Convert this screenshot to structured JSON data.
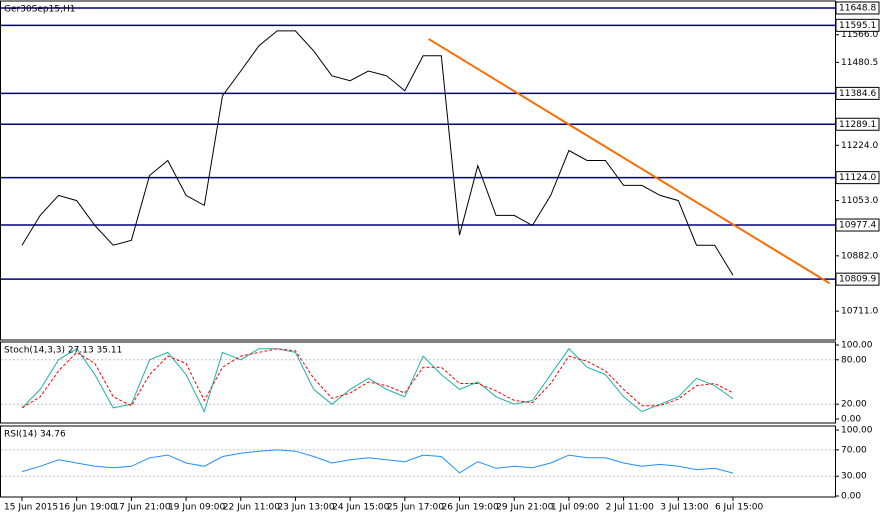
{
  "chart_data": [
    {
      "type": "line",
      "title": "Ger30Sep15,H1",
      "categories": [
        "15 Jun 2015",
        null,
        null,
        "16 Jun 19:00",
        null,
        null,
        "17 Jun 21:00",
        null,
        null,
        "19 Jun 09:00",
        null,
        null,
        "22 Jun 11:00",
        null,
        null,
        "23 Jun 13:00",
        null,
        null,
        "24 Jun 15:00",
        null,
        null,
        "25 Jun 17:00",
        null,
        null,
        "26 Jun 19:00",
        null,
        null,
        "29 Jun 21:00",
        null,
        null,
        "1 Jul 09:00",
        null,
        null,
        "2 Jul 11:00",
        null,
        null,
        "3 Jul 13:00",
        null,
        null,
        "6 Jul 15:00"
      ],
      "values": [
        10915,
        11007,
        11069,
        11053,
        10976,
        10915,
        10930,
        11131,
        11177,
        11069,
        11038,
        11377,
        11454,
        11532,
        11578,
        11578,
        11516,
        11439,
        11424,
        11454,
        11439,
        11393,
        11501,
        11501,
        10946,
        11161,
        11007,
        11007,
        10976,
        11069,
        11208,
        11177,
        11177,
        11100,
        11100,
        11069,
        11053,
        10915,
        10915,
        10822
      ],
      "color": "#000000",
      "ylim": [
        10621.7,
        11670.4
      ],
      "yticks": [
        {
          "value": 11566,
          "label": "11566.0"
        },
        11480.5,
        {
          "value": 11224,
          "label": "11224.0"
        },
        {
          "value": 11053,
          "label": "11053.0"
        },
        {
          "value": 10882,
          "label": "10882.0"
        },
        {
          "value": 10711,
          "label": "10711.0"
        }
      ],
      "levels": [
        11648.8,
        11595.1,
        11384.6,
        11289.1,
        {
          "value": 11124,
          "label": "11124.0"
        },
        10977.4,
        10809.9
      ],
      "level_color": "#000080",
      "trendline": {
        "start": [
          22.3,
          11553
        ],
        "end": [
          44.3,
          10797
        ],
        "color": "#ff6a00"
      }
    },
    {
      "type": "line",
      "title": "Stoch(14,3,3) 27.13 35.11",
      "series": [
        {
          "color": "#20b2aa",
          "values": [
            15,
            40,
            80,
            95,
            60,
            15,
            20,
            80,
            90,
            60,
            10,
            90,
            80,
            95,
            95,
            90,
            40,
            20,
            40,
            55,
            40,
            30,
            85,
            60,
            40,
            50,
            30,
            20,
            25,
            60,
            95,
            70,
            60,
            30,
            10,
            20,
            30,
            55,
            45,
            27.13
          ]
        },
        {
          "color": "#ff0000",
          "dashed": true,
          "values": [
            15,
            30,
            65,
            90,
            75,
            30,
            18,
            60,
            85,
            75,
            25,
            70,
            85,
            90,
            95,
            92,
            55,
            28,
            35,
            50,
            45,
            35,
            70,
            70,
            48,
            48,
            38,
            25,
            22,
            48,
            85,
            78,
            65,
            40,
            18,
            18,
            27,
            45,
            48,
            35.11
          ]
        }
      ],
      "ylim": [
        -5.4,
        104.05
      ],
      "yticks": [
        {
          "value": 100,
          "label": "100.00"
        },
        {
          "value": 80,
          "label": "80.00"
        },
        {
          "value": 20,
          "label": "20.00"
        },
        {
          "value": 0,
          "label": "0.00"
        }
      ],
      "dashed_grid": [
        80,
        20
      ]
    },
    {
      "type": "line",
      "title": "RSI(14) 34.76",
      "series": [
        {
          "color": "#1e90ff",
          "values": [
            37,
            45,
            55,
            50,
            45,
            43,
            45,
            58,
            62,
            50,
            45,
            60,
            65,
            68,
            70,
            68,
            60,
            50,
            55,
            58,
            55,
            52,
            62,
            60,
            35,
            52,
            42,
            45,
            43,
            50,
            62,
            58,
            58,
            50,
            45,
            48,
            45,
            40,
            42,
            34.76
          ]
        }
      ],
      "ylim": [
        -1.5,
        106.2
      ],
      "yticks": [
        {
          "value": 100,
          "label": "100.00"
        },
        {
          "value": 70,
          "label": "70.00"
        },
        {
          "value": 30,
          "label": "30.00"
        },
        {
          "value": 0,
          "label": "0.00"
        }
      ],
      "dashed_grid": [
        70,
        30
      ]
    }
  ]
}
